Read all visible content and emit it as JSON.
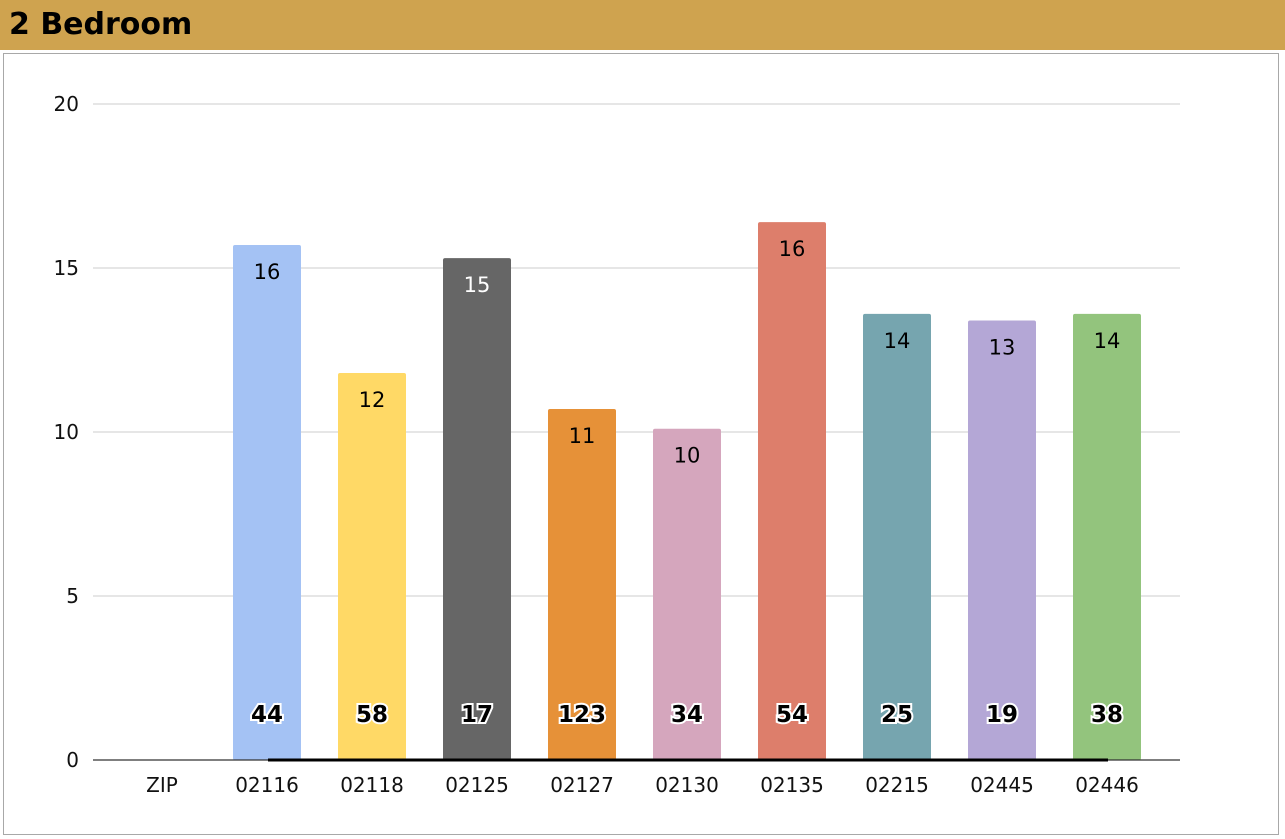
{
  "header": {
    "title": "2 Bedroom",
    "background": "#cfa34f"
  },
  "chart_data": {
    "type": "bar",
    "title": "",
    "xlabel": "",
    "ylabel": "",
    "ylim": [
      0,
      20
    ],
    "yticks": [
      0,
      5,
      10,
      15,
      20
    ],
    "grid": true,
    "categories": [
      "ZIP",
      "02116",
      "02118",
      "02125",
      "02127",
      "02130",
      "02135",
      "02215",
      "02445",
      "02446"
    ],
    "values": [
      null,
      15.7,
      11.8,
      15.3,
      10.7,
      10.1,
      16.4,
      13.6,
      13.4,
      13.6
    ],
    "value_labels": [
      "",
      "16",
      "12",
      "15",
      "11",
      "10",
      "16",
      "14",
      "13",
      "14"
    ],
    "count_labels": [
      "",
      "44",
      "58",
      "17",
      "123",
      "34",
      "54",
      "25",
      "19",
      "38"
    ],
    "colors": [
      "",
      "#a4c2f4",
      "#ffd966",
      "#666666",
      "#e69138",
      "#d5a6bd",
      "#dd7e6b",
      "#76a5af",
      "#b4a7d6",
      "#93c47d"
    ],
    "value_label_colors": [
      "",
      "#000000",
      "#000000",
      "#ffffff",
      "#000000",
      "#000000",
      "#000000",
      "#000000",
      "#000000",
      "#000000"
    ]
  }
}
